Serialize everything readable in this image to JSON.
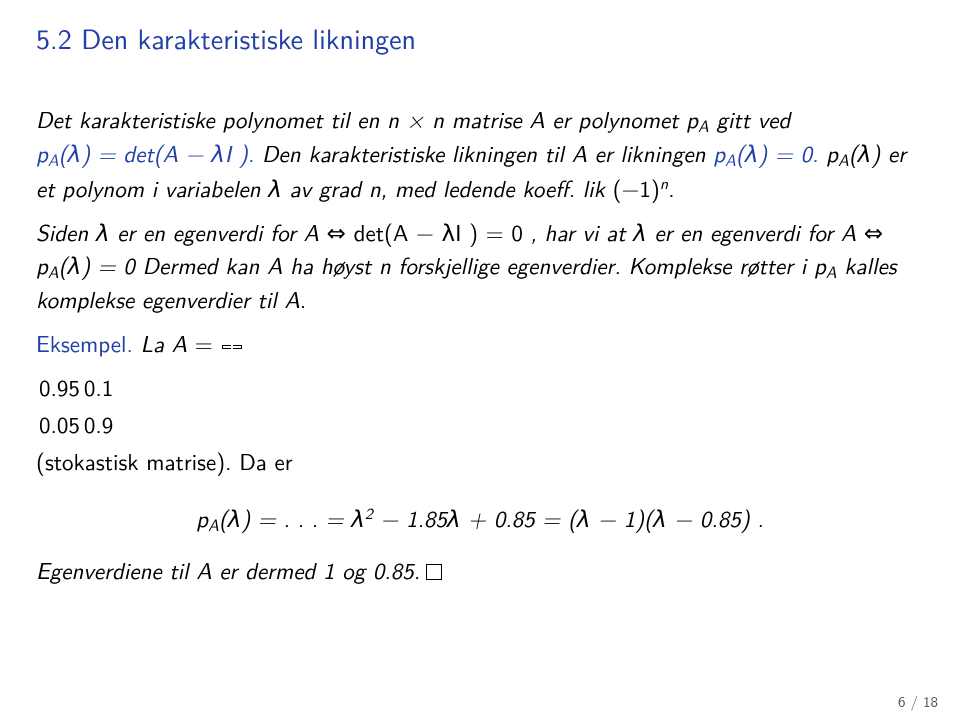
{
  "title": "5.2 Den karakteristiske likningen",
  "p1_a": "Det karakteristiske polynomet til en ",
  "p1_nxn": "n × n",
  "p1_b": " matrise ",
  "p1_A": "A",
  "p1_c": " er polynomet ",
  "p1_pA": "p",
  "p1_sub": "A",
  "p1_d": " gitt ved ",
  "p1_eq": "p",
  "p1_eq_sub": "A",
  "p1_eq_rest": "(λ) = det(A − λI ).",
  "p1_e": " Den karakteristiske likningen til ",
  "p1_f": " er likningen ",
  "p1_eq2": "p",
  "p1_eq2_sub": "A",
  "p1_eq2_rest": "(λ) = 0.",
  "p1_g": " ",
  "p1_eq3": "p",
  "p1_eq3_sub": "A",
  "p1_eq3_rest": "(λ)",
  "p1_h": " er et polynom i variabelen λ av grad ",
  "p1_n": "n",
  "p1_i": ", med ledende koeff. lik ",
  "p1_pm": "(−1)",
  "p1_pm_sup": "n",
  "p1_j": ".",
  "p2_a": "Siden   λ er en egenverdi for ",
  "p2_b": "   ⇔   det",
  "p2_det": "(A − λI ) = 0",
  "p2_c": " , har vi at   λ er en egenverdi for ",
  "p2_d": "   ⇔   ",
  "p2_eq": "p",
  "p2_eq_sub": "A",
  "p2_eq_rest": "(λ) = 0",
  "p2_e": " Dermed kan ",
  "p2_f": " ha høyst ",
  "p2_g": " forskjellige egenverdier. Komplekse røtter i ",
  "p2_pA": "p",
  "p2_pA_sub": "A",
  "p2_h": " kalles komplekse egenverdier til ",
  "p2_i": ".",
  "ex_label": "Eksempel.",
  "ex_a": " La ",
  "ex_b": " = ",
  "m00": "0.95",
  "m01": "0.1",
  "m10": "0.05",
  "m11": "0.9",
  "ex_c": " (stokastisk matrise). Da er",
  "disp_a": "p",
  "disp_sub": "A",
  "disp_b": "(λ) = . . . = λ",
  "disp_sup": "2",
  "disp_c": " − 1.85λ + 0.85 = (λ − 1)(λ − 0.85) .",
  "last": "Egenverdiene til ",
  "last_b": " er dermed 1 og 0.85.",
  "page": "6 / 18"
}
